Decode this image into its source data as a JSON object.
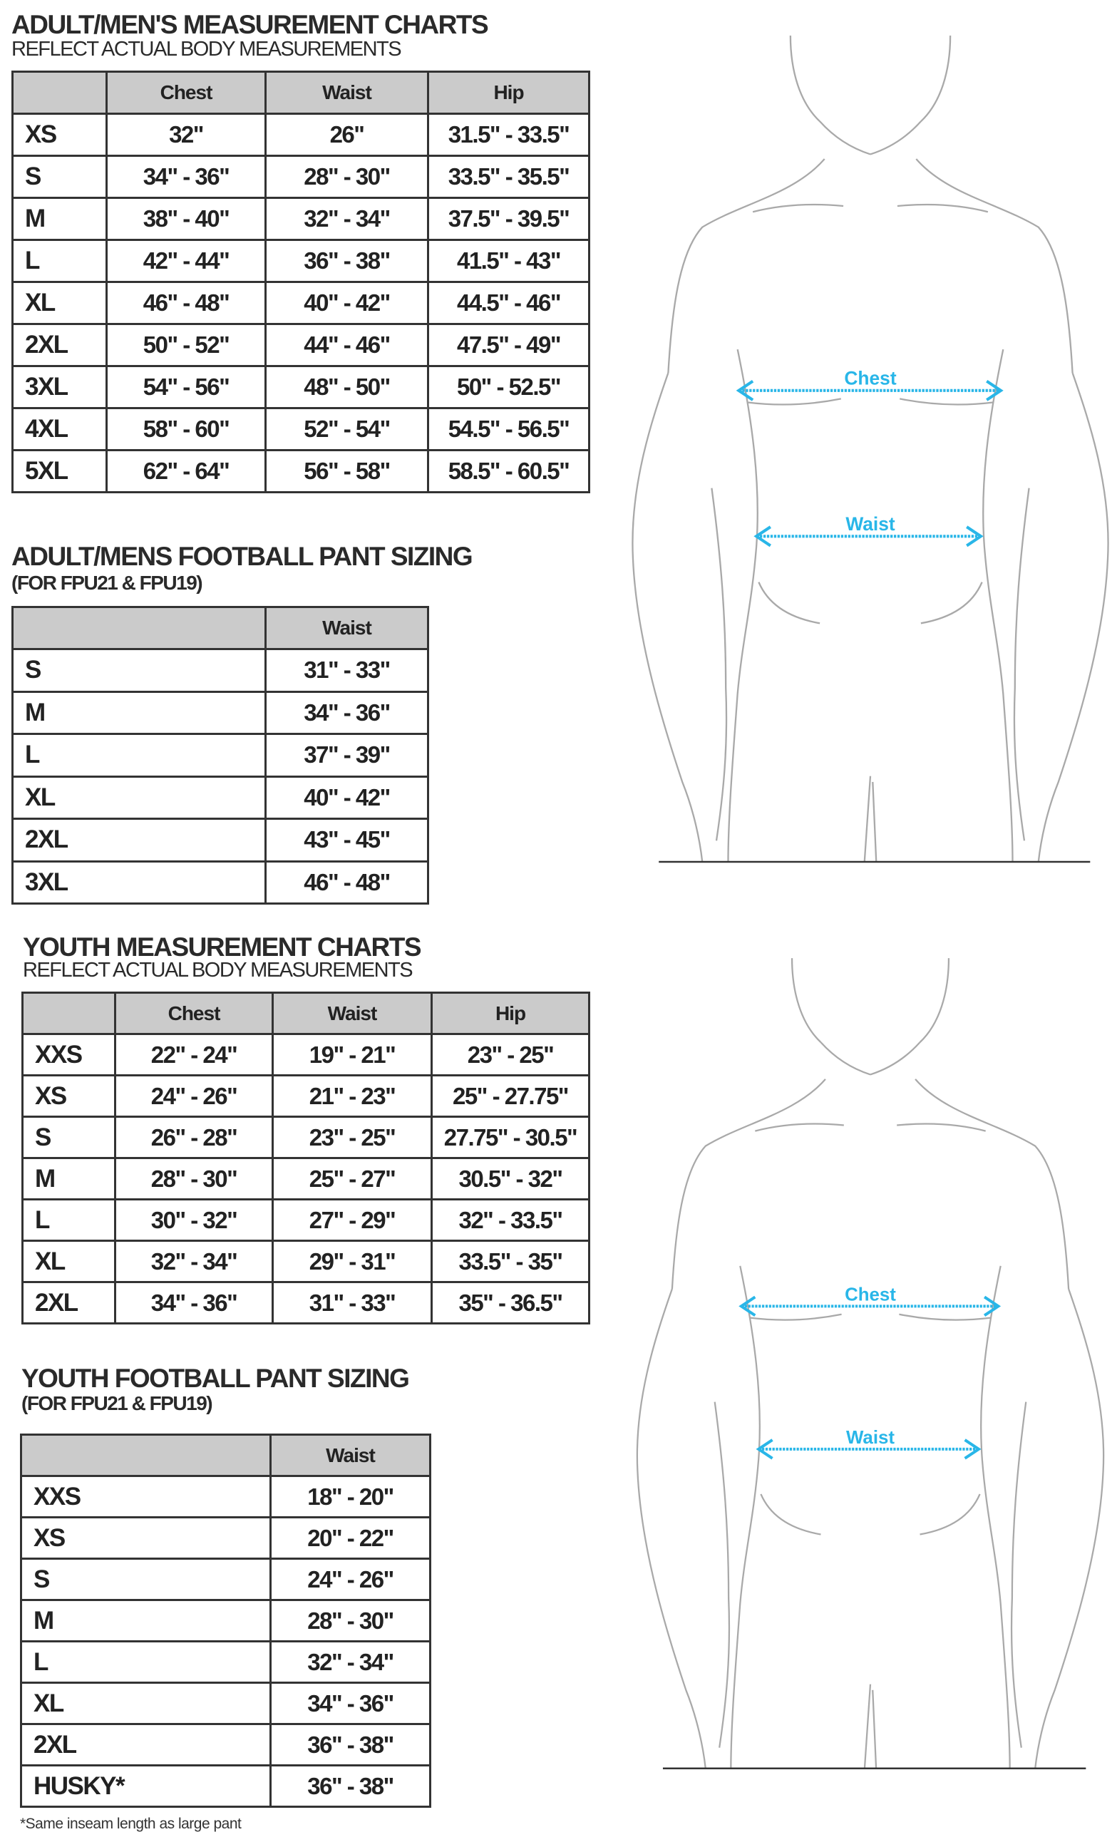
{
  "colors": {
    "accent": "#29b6e8",
    "header_bg": "#cbcbcb",
    "line": "#333333"
  },
  "adult_chart": {
    "title": "ADULT/MEN'S MEASUREMENT CHARTS",
    "subtitle": "REFLECT ACTUAL BODY MEASUREMENTS",
    "columns": [
      "",
      "Chest",
      "Waist",
      "Hip"
    ],
    "rows": [
      [
        "XS",
        "32\"",
        "26\"",
        "31.5\" - 33.5\""
      ],
      [
        "S",
        "34\" - 36\"",
        "28\" - 30\"",
        "33.5\" - 35.5\""
      ],
      [
        "M",
        "38\" - 40\"",
        "32\" - 34\"",
        "37.5\" - 39.5\""
      ],
      [
        "L",
        "42\" - 44\"",
        "36\" - 38\"",
        "41.5\" - 43\""
      ],
      [
        "XL",
        "46\" - 48\"",
        "40\" - 42\"",
        "44.5\" - 46\""
      ],
      [
        "2XL",
        "50\" - 52\"",
        "44\" - 46\"",
        "47.5\" - 49\""
      ],
      [
        "3XL",
        "54\" - 56\"",
        "48\" - 50\"",
        "50\" - 52.5\""
      ],
      [
        "4XL",
        "58\" - 60\"",
        "52\" - 54\"",
        "54.5\" - 56.5\""
      ],
      [
        "5XL",
        "62\" - 64\"",
        "56\" - 58\"",
        "58.5\" - 60.5\""
      ]
    ]
  },
  "adult_pant": {
    "title": "ADULT/MENS FOOTBALL PANT SIZING",
    "subtitle": "(FOR FPU21 & FPU19)",
    "columns": [
      "",
      "Waist"
    ],
    "rows": [
      [
        "S",
        "31\" - 33\""
      ],
      [
        "M",
        "34\" - 36\""
      ],
      [
        "L",
        "37\" - 39\""
      ],
      [
        "XL",
        "40\" - 42\""
      ],
      [
        "2XL",
        "43\" - 45\""
      ],
      [
        "3XL",
        "46\" - 48\""
      ]
    ]
  },
  "youth_chart": {
    "title": "YOUTH MEASUREMENT CHARTS",
    "subtitle": "REFLECT ACTUAL BODY MEASUREMENTS",
    "columns": [
      "",
      "Chest",
      "Waist",
      "Hip"
    ],
    "rows": [
      [
        "XXS",
        "22\" - 24\"",
        "19\" - 21\"",
        "23\" - 25\""
      ],
      [
        "XS",
        "24\" - 26\"",
        "21\" - 23\"",
        "25\" - 27.75\""
      ],
      [
        "S",
        "26\" - 28\"",
        "23\" - 25\"",
        "27.75\" - 30.5\""
      ],
      [
        "M",
        "28\" - 30\"",
        "25\" - 27\"",
        "30.5\" - 32\""
      ],
      [
        "L",
        "30\" - 32\"",
        "27\" - 29\"",
        "32\" - 33.5\""
      ],
      [
        "XL",
        "32\" - 34\"",
        "29\" - 31\"",
        "33.5\" - 35\""
      ],
      [
        "2XL",
        "34\" - 36\"",
        "31\" - 33\"",
        "35\" - 36.5\""
      ]
    ]
  },
  "youth_pant": {
    "title": "YOUTH FOOTBALL PANT SIZING",
    "subtitle": "(FOR FPU21 & FPU19)",
    "columns": [
      "",
      "Waist"
    ],
    "rows": [
      [
        "XXS",
        "18\" - 20\""
      ],
      [
        "XS",
        "20\" - 22\""
      ],
      [
        "S",
        "24\" - 26\""
      ],
      [
        "M",
        "28\" - 30\""
      ],
      [
        "L",
        "32\" - 34\""
      ],
      [
        "XL",
        "34\" - 36\""
      ],
      [
        "2XL",
        "36\" - 38\""
      ],
      [
        "HUSKY*",
        "36\" - 38\""
      ]
    ],
    "footnote": "*Same inseam length as large pant"
  },
  "figures": {
    "chest_label": "Chest",
    "waist_label": "Waist"
  }
}
